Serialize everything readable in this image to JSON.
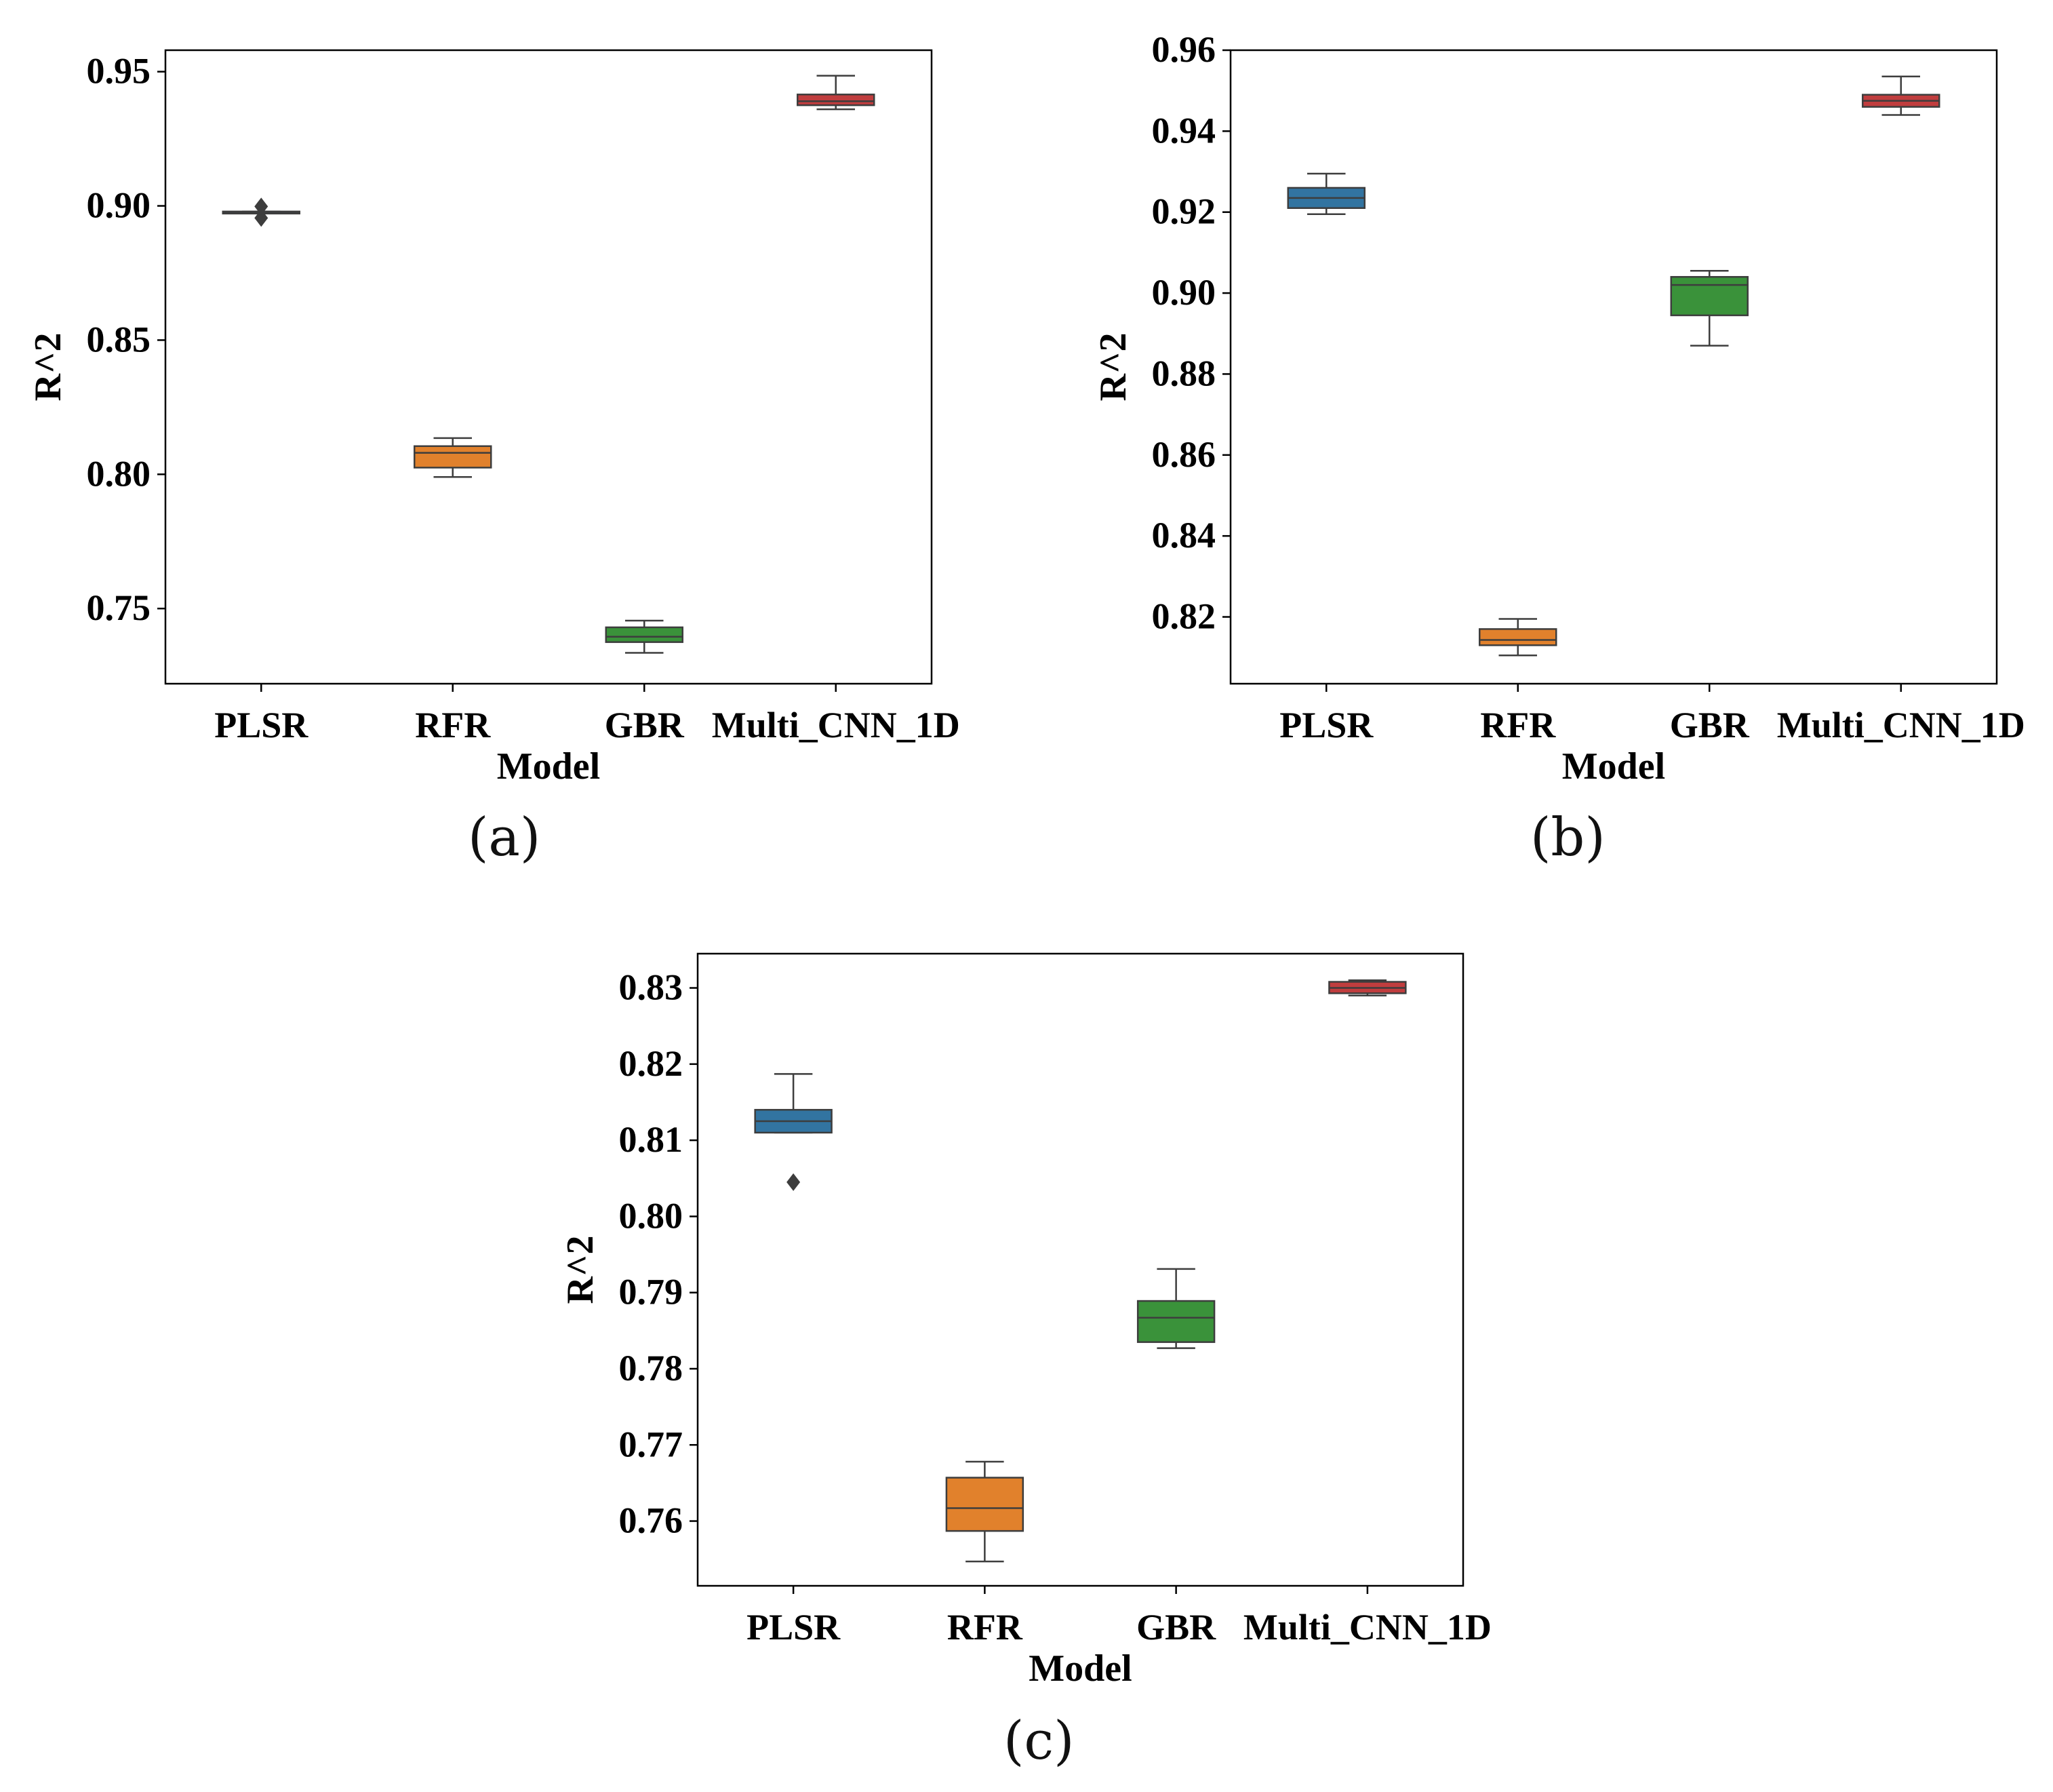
{
  "chart_data": [
    {
      "panel": "(a)",
      "type": "box",
      "xlabel": "Model",
      "ylabel": "R^2",
      "categories": [
        "PLSR",
        "RFR",
        "GBR",
        "Multi_CNN_1D"
      ],
      "colors": [
        "#3274a1",
        "#e1812c",
        "#3a923a",
        "#c03d3e"
      ],
      "ylim": [
        0.722,
        0.958
      ],
      "yticks": [
        0.75,
        0.8,
        0.85,
        0.9,
        0.95
      ],
      "tick_labels": [
        "0.75",
        "0.80",
        "0.85",
        "0.90",
        "0.95"
      ],
      "boxes": [
        {
          "whislo": 0.8975,
          "q1": 0.8975,
          "med": 0.8977,
          "q3": 0.8979,
          "whishi": 0.8979,
          "fliers": [
            0.8955,
            0.8998
          ]
        },
        {
          "whislo": 0.799,
          "q1": 0.8025,
          "med": 0.808,
          "q3": 0.8105,
          "whishi": 0.8135,
          "fliers": []
        },
        {
          "whislo": 0.7335,
          "q1": 0.7375,
          "med": 0.7395,
          "q3": 0.743,
          "whishi": 0.7455,
          "fliers": []
        },
        {
          "whislo": 0.936,
          "q1": 0.9375,
          "med": 0.939,
          "q3": 0.9415,
          "whishi": 0.9485,
          "fliers": []
        }
      ]
    },
    {
      "panel": "(b)",
      "type": "box",
      "xlabel": "Model",
      "ylabel": "R^2",
      "categories": [
        "PLSR",
        "RFR",
        "GBR",
        "Multi_CNN_1D"
      ],
      "colors": [
        "#3274a1",
        "#e1812c",
        "#3a923a",
        "#c03d3e"
      ],
      "ylim": [
        0.8035,
        0.96
      ],
      "yticks": [
        0.82,
        0.84,
        0.86,
        0.88,
        0.9,
        0.92,
        0.94,
        0.96
      ],
      "tick_labels": [
        "0.82",
        "0.84",
        "0.86",
        "0.88",
        "0.90",
        "0.92",
        "0.94",
        "0.96"
      ],
      "boxes": [
        {
          "whislo": 0.9195,
          "q1": 0.921,
          "med": 0.9235,
          "q3": 0.926,
          "whishi": 0.9295,
          "fliers": []
        },
        {
          "whislo": 0.8105,
          "q1": 0.813,
          "med": 0.8143,
          "q3": 0.817,
          "whishi": 0.8195,
          "fliers": []
        },
        {
          "whislo": 0.887,
          "q1": 0.8945,
          "med": 0.902,
          "q3": 0.904,
          "whishi": 0.9055,
          "fliers": []
        },
        {
          "whislo": 0.944,
          "q1": 0.946,
          "med": 0.9475,
          "q3": 0.949,
          "whishi": 0.9535,
          "fliers": []
        }
      ]
    },
    {
      "panel": "(c)",
      "type": "box",
      "xlabel": "Model",
      "ylabel": "R^2",
      "categories": [
        "PLSR",
        "RFR",
        "GBR",
        "Multi_CNN_1D"
      ],
      "colors": [
        "#3274a1",
        "#e1812c",
        "#3a923a",
        "#c03d3e"
      ],
      "ylim": [
        0.7515,
        0.8345
      ],
      "yticks": [
        0.76,
        0.77,
        0.78,
        0.79,
        0.8,
        0.81,
        0.82,
        0.83
      ],
      "tick_labels": [
        "0.76",
        "0.77",
        "0.78",
        "0.79",
        "0.80",
        "0.81",
        "0.82",
        "0.83"
      ],
      "boxes": [
        {
          "whislo": 0.811,
          "q1": 0.811,
          "med": 0.8125,
          "q3": 0.814,
          "whishi": 0.8187,
          "fliers": [
            0.8045
          ]
        },
        {
          "whislo": 0.7547,
          "q1": 0.7587,
          "med": 0.7617,
          "q3": 0.7657,
          "whishi": 0.7678,
          "fliers": []
        },
        {
          "whislo": 0.7827,
          "q1": 0.7835,
          "med": 0.7867,
          "q3": 0.7889,
          "whishi": 0.7931,
          "fliers": []
        },
        {
          "whislo": 0.829,
          "q1": 0.8293,
          "med": 0.83,
          "q3": 0.8308,
          "whishi": 0.831,
          "fliers": []
        }
      ]
    }
  ]
}
